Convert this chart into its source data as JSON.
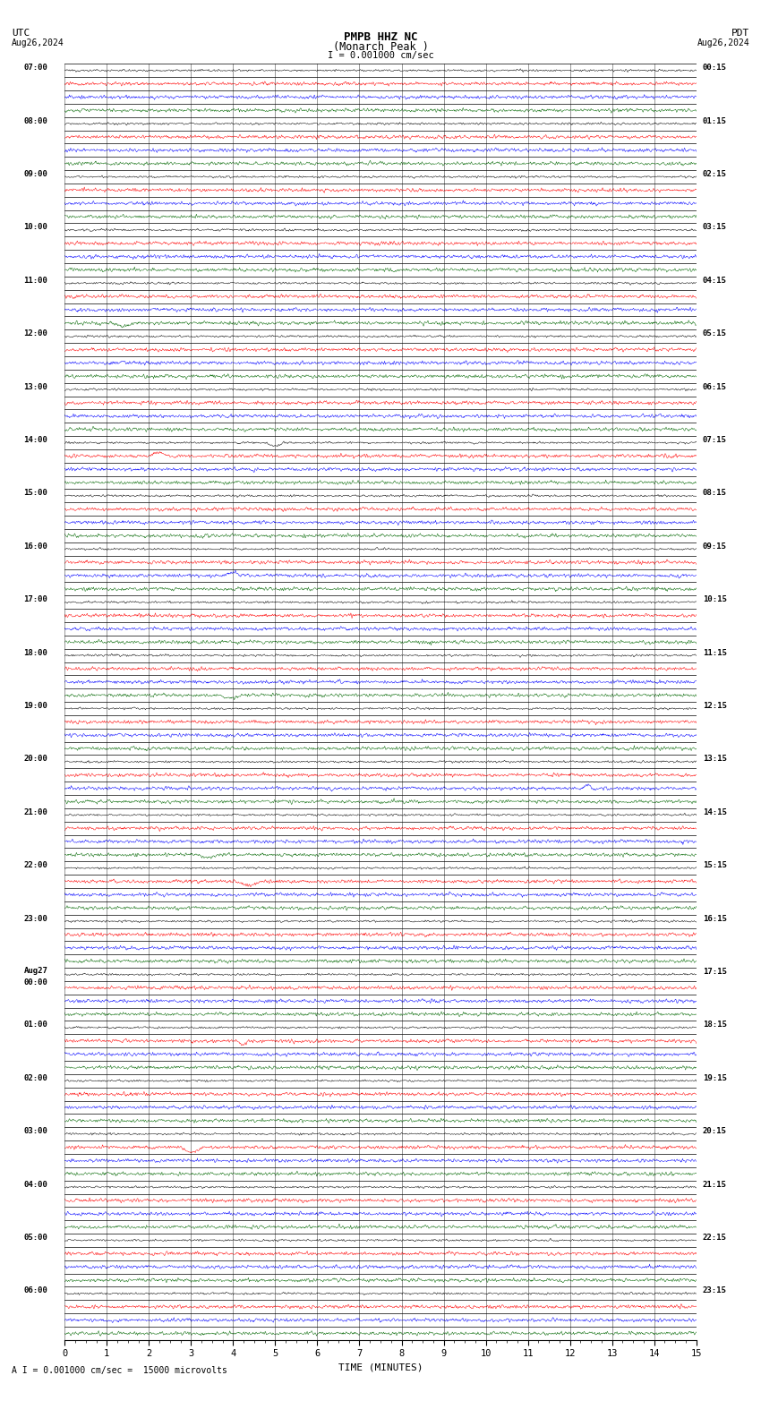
{
  "title_line1": "PMPB HHZ NC",
  "title_line2": "(Monarch Peak )",
  "scale_label": "I = 0.001000 cm/sec",
  "footer_label": "A I = 0.001000 cm/sec =  15000 microvolts",
  "left_header_line1": "UTC",
  "left_header_line2": "Aug26,2024",
  "right_header_line1": "PDT",
  "right_header_line2": "Aug26,2024",
  "xlabel": "TIME (MINUTES)",
  "background_color": "#ffffff",
  "trace_colors": [
    "#000000",
    "#ff0000",
    "#0000ff",
    "#006600"
  ],
  "fig_width": 8.5,
  "fig_height": 15.84,
  "left_labels": [
    "07:00",
    "08:00",
    "09:00",
    "10:00",
    "11:00",
    "12:00",
    "13:00",
    "14:00",
    "15:00",
    "16:00",
    "17:00",
    "18:00",
    "19:00",
    "20:00",
    "21:00",
    "22:00",
    "23:00",
    "Aug27",
    "01:00",
    "02:00",
    "03:00",
    "04:00",
    "05:00",
    "06:00"
  ],
  "left_labels_extra": [
    null,
    null,
    null,
    null,
    null,
    null,
    null,
    null,
    null,
    null,
    null,
    null,
    null,
    null,
    null,
    null,
    null,
    "00:00",
    null,
    null,
    null,
    null,
    null,
    null
  ],
  "right_labels": [
    "00:15",
    "01:15",
    "02:15",
    "03:15",
    "04:15",
    "05:15",
    "06:15",
    "07:15",
    "08:15",
    "09:15",
    "10:15",
    "11:15",
    "12:15",
    "13:15",
    "14:15",
    "15:15",
    "16:15",
    "17:15",
    "18:15",
    "19:15",
    "20:15",
    "21:15",
    "22:15",
    "23:15"
  ],
  "x_ticks": [
    0,
    1,
    2,
    3,
    4,
    5,
    6,
    7,
    8,
    9,
    10,
    11,
    12,
    13,
    14,
    15
  ],
  "display_minutes": 15,
  "sub_rows_per_hour": 4,
  "noise_amplitude": 0.06,
  "noise_amplitude_colored": 0.1
}
